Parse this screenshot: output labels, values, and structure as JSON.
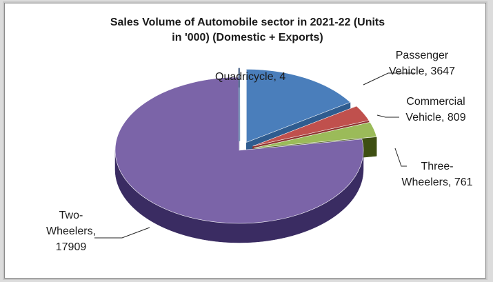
{
  "chart_data": {
    "type": "pie",
    "title_lines": [
      "Sales Volume of Automobile sector in 2021-22 (Units",
      "in '000) (Domestic + Exports)"
    ],
    "slices": [
      {
        "label_lines": [
          "Passenger",
          "Vehicle, 3647"
        ],
        "value": 3647,
        "color": "#4a7ebb",
        "side": "#2f5c8f",
        "exploded": true
      },
      {
        "label_lines": [
          "Commercial",
          "Vehicle, 809"
        ],
        "value": 809,
        "color": "#c0504d",
        "side": "#8e3431",
        "exploded": true
      },
      {
        "label_lines": [
          "Three-",
          "Wheelers, 761"
        ],
        "value": 761,
        "color": "#9bbb59",
        "side": "#3e4f12",
        "exploded": true
      },
      {
        "label_lines": [
          "Two-",
          "Wheelers,",
          "17909"
        ],
        "value": 17909,
        "color": "#7b64a8",
        "side": "#3a2c62",
        "exploded": false
      },
      {
        "label_lines": [
          "Quadricycle, 4"
        ],
        "value": 4,
        "color": "#9fb7d6",
        "side": "#6f88a8",
        "exploded": true
      }
    ],
    "legend": "none",
    "data_labels": "category-name-and-value"
  }
}
